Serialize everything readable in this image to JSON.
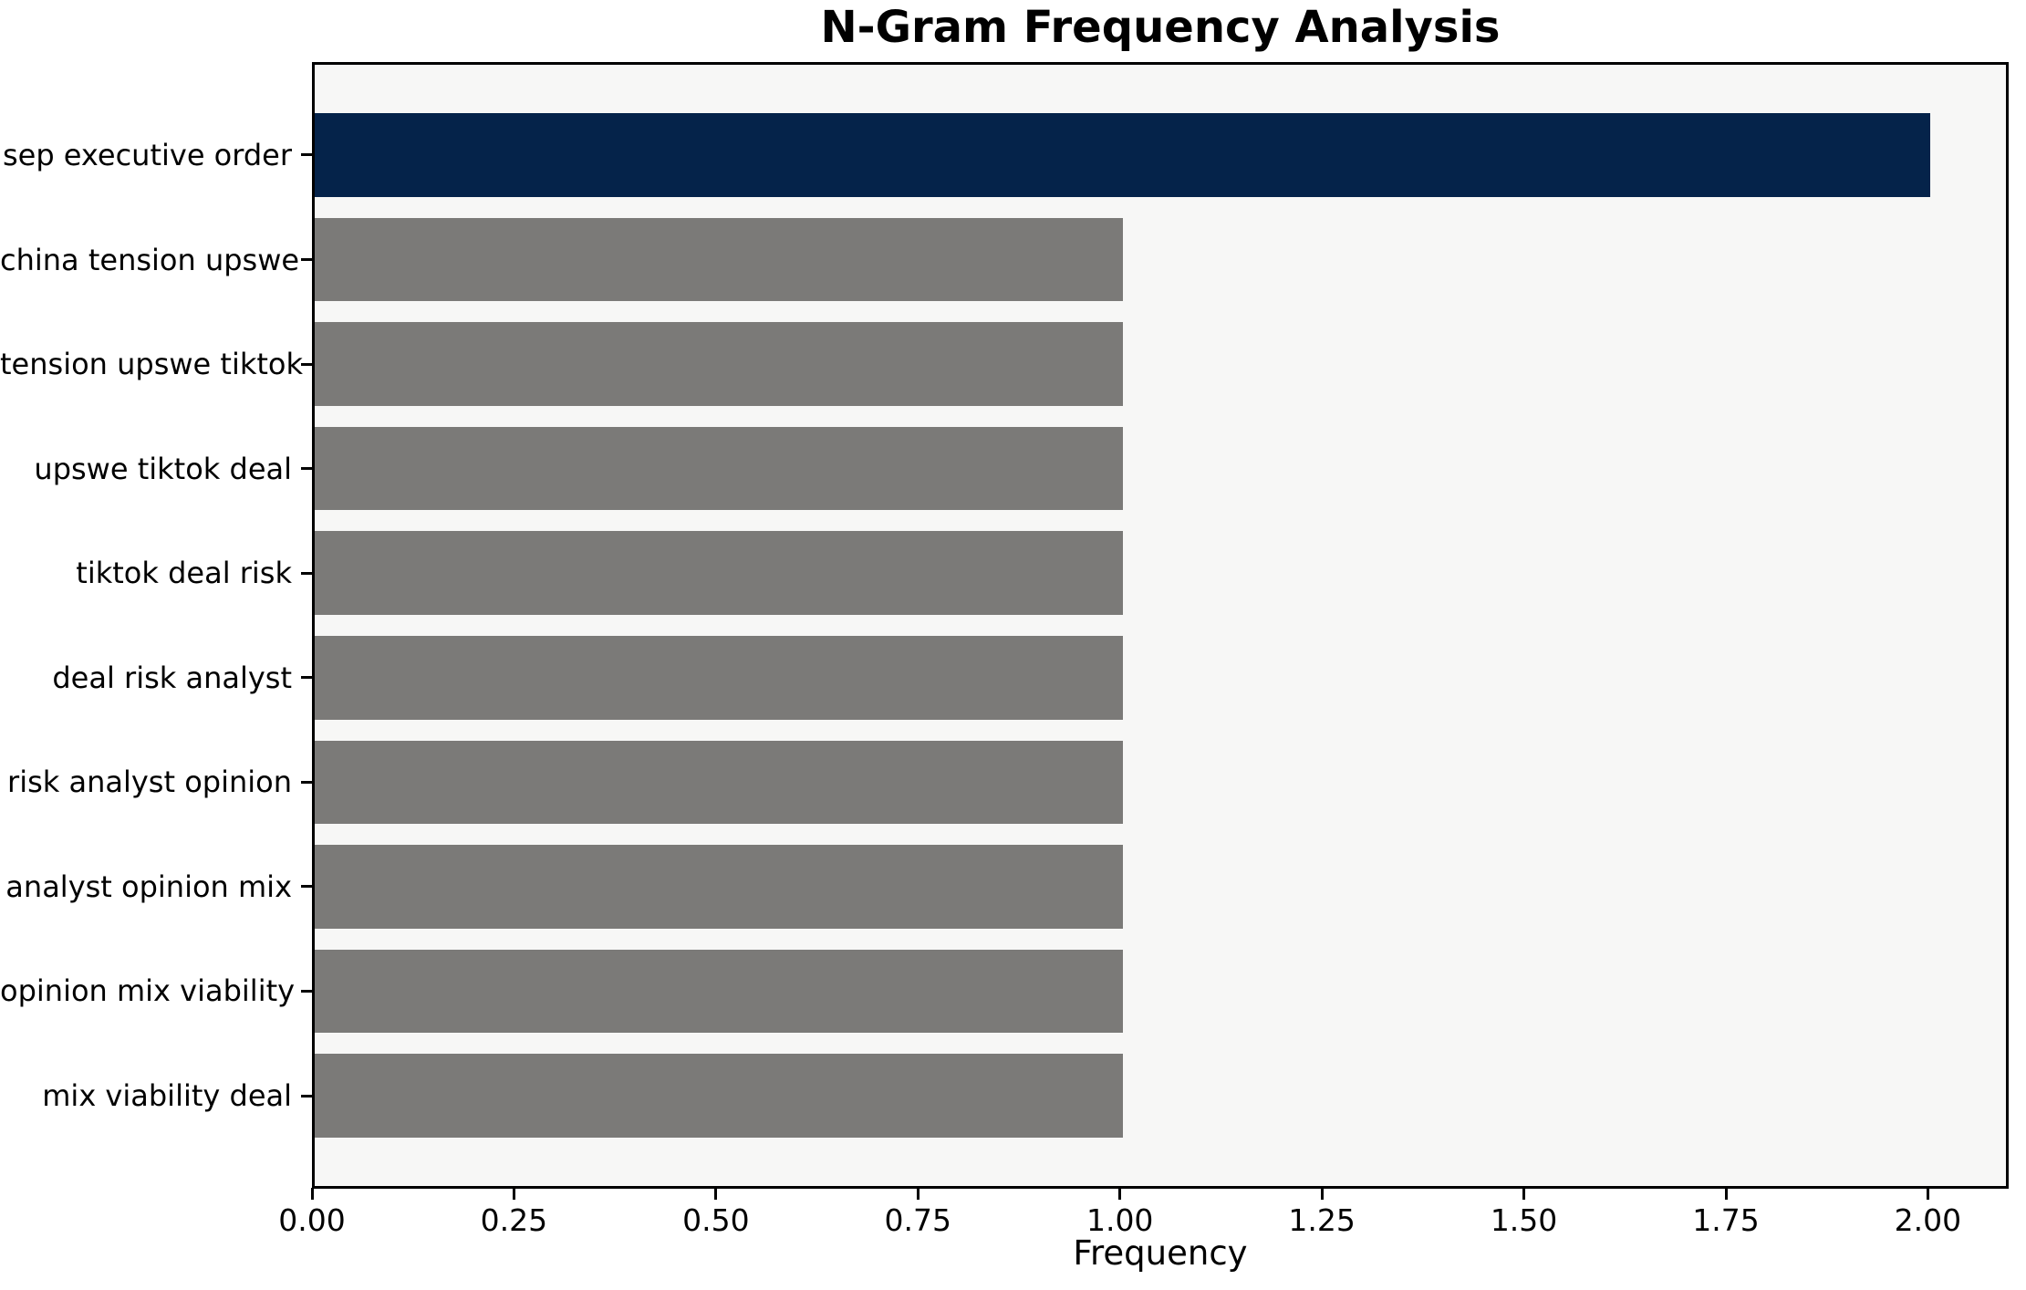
{
  "chart_data": {
    "type": "bar",
    "orientation": "horizontal",
    "title": "N-Gram Frequency Analysis",
    "xlabel": "Frequency",
    "ylabel": "",
    "categories": [
      "sep executive order",
      "china tension upswe",
      "tension upswe tiktok",
      "upswe tiktok deal",
      "tiktok deal risk",
      "deal risk analyst",
      "risk analyst opinion",
      "analyst opinion mix",
      "opinion mix viability",
      "mix viability deal"
    ],
    "values": [
      2,
      1,
      1,
      1,
      1,
      1,
      1,
      1,
      1,
      1
    ],
    "highlight_index": 0,
    "bar_highlight_color": "#05234a",
    "bar_default_color": "#7b7a78",
    "plot_background": "#f7f7f6",
    "spine_color": "#000000",
    "xlim": [
      0,
      2.1
    ],
    "x_ticks": [
      {
        "value": 0.0,
        "label": "0.00"
      },
      {
        "value": 0.25,
        "label": "0.25"
      },
      {
        "value": 0.5,
        "label": "0.50"
      },
      {
        "value": 0.75,
        "label": "0.75"
      },
      {
        "value": 1.0,
        "label": "1.00"
      },
      {
        "value": 1.25,
        "label": "1.25"
      },
      {
        "value": 1.5,
        "label": "1.50"
      },
      {
        "value": 1.75,
        "label": "1.75"
      },
      {
        "value": 2.0,
        "label": "2.00"
      }
    ],
    "grid": false,
    "legend": null,
    "bar_height_fraction": 0.8
  }
}
